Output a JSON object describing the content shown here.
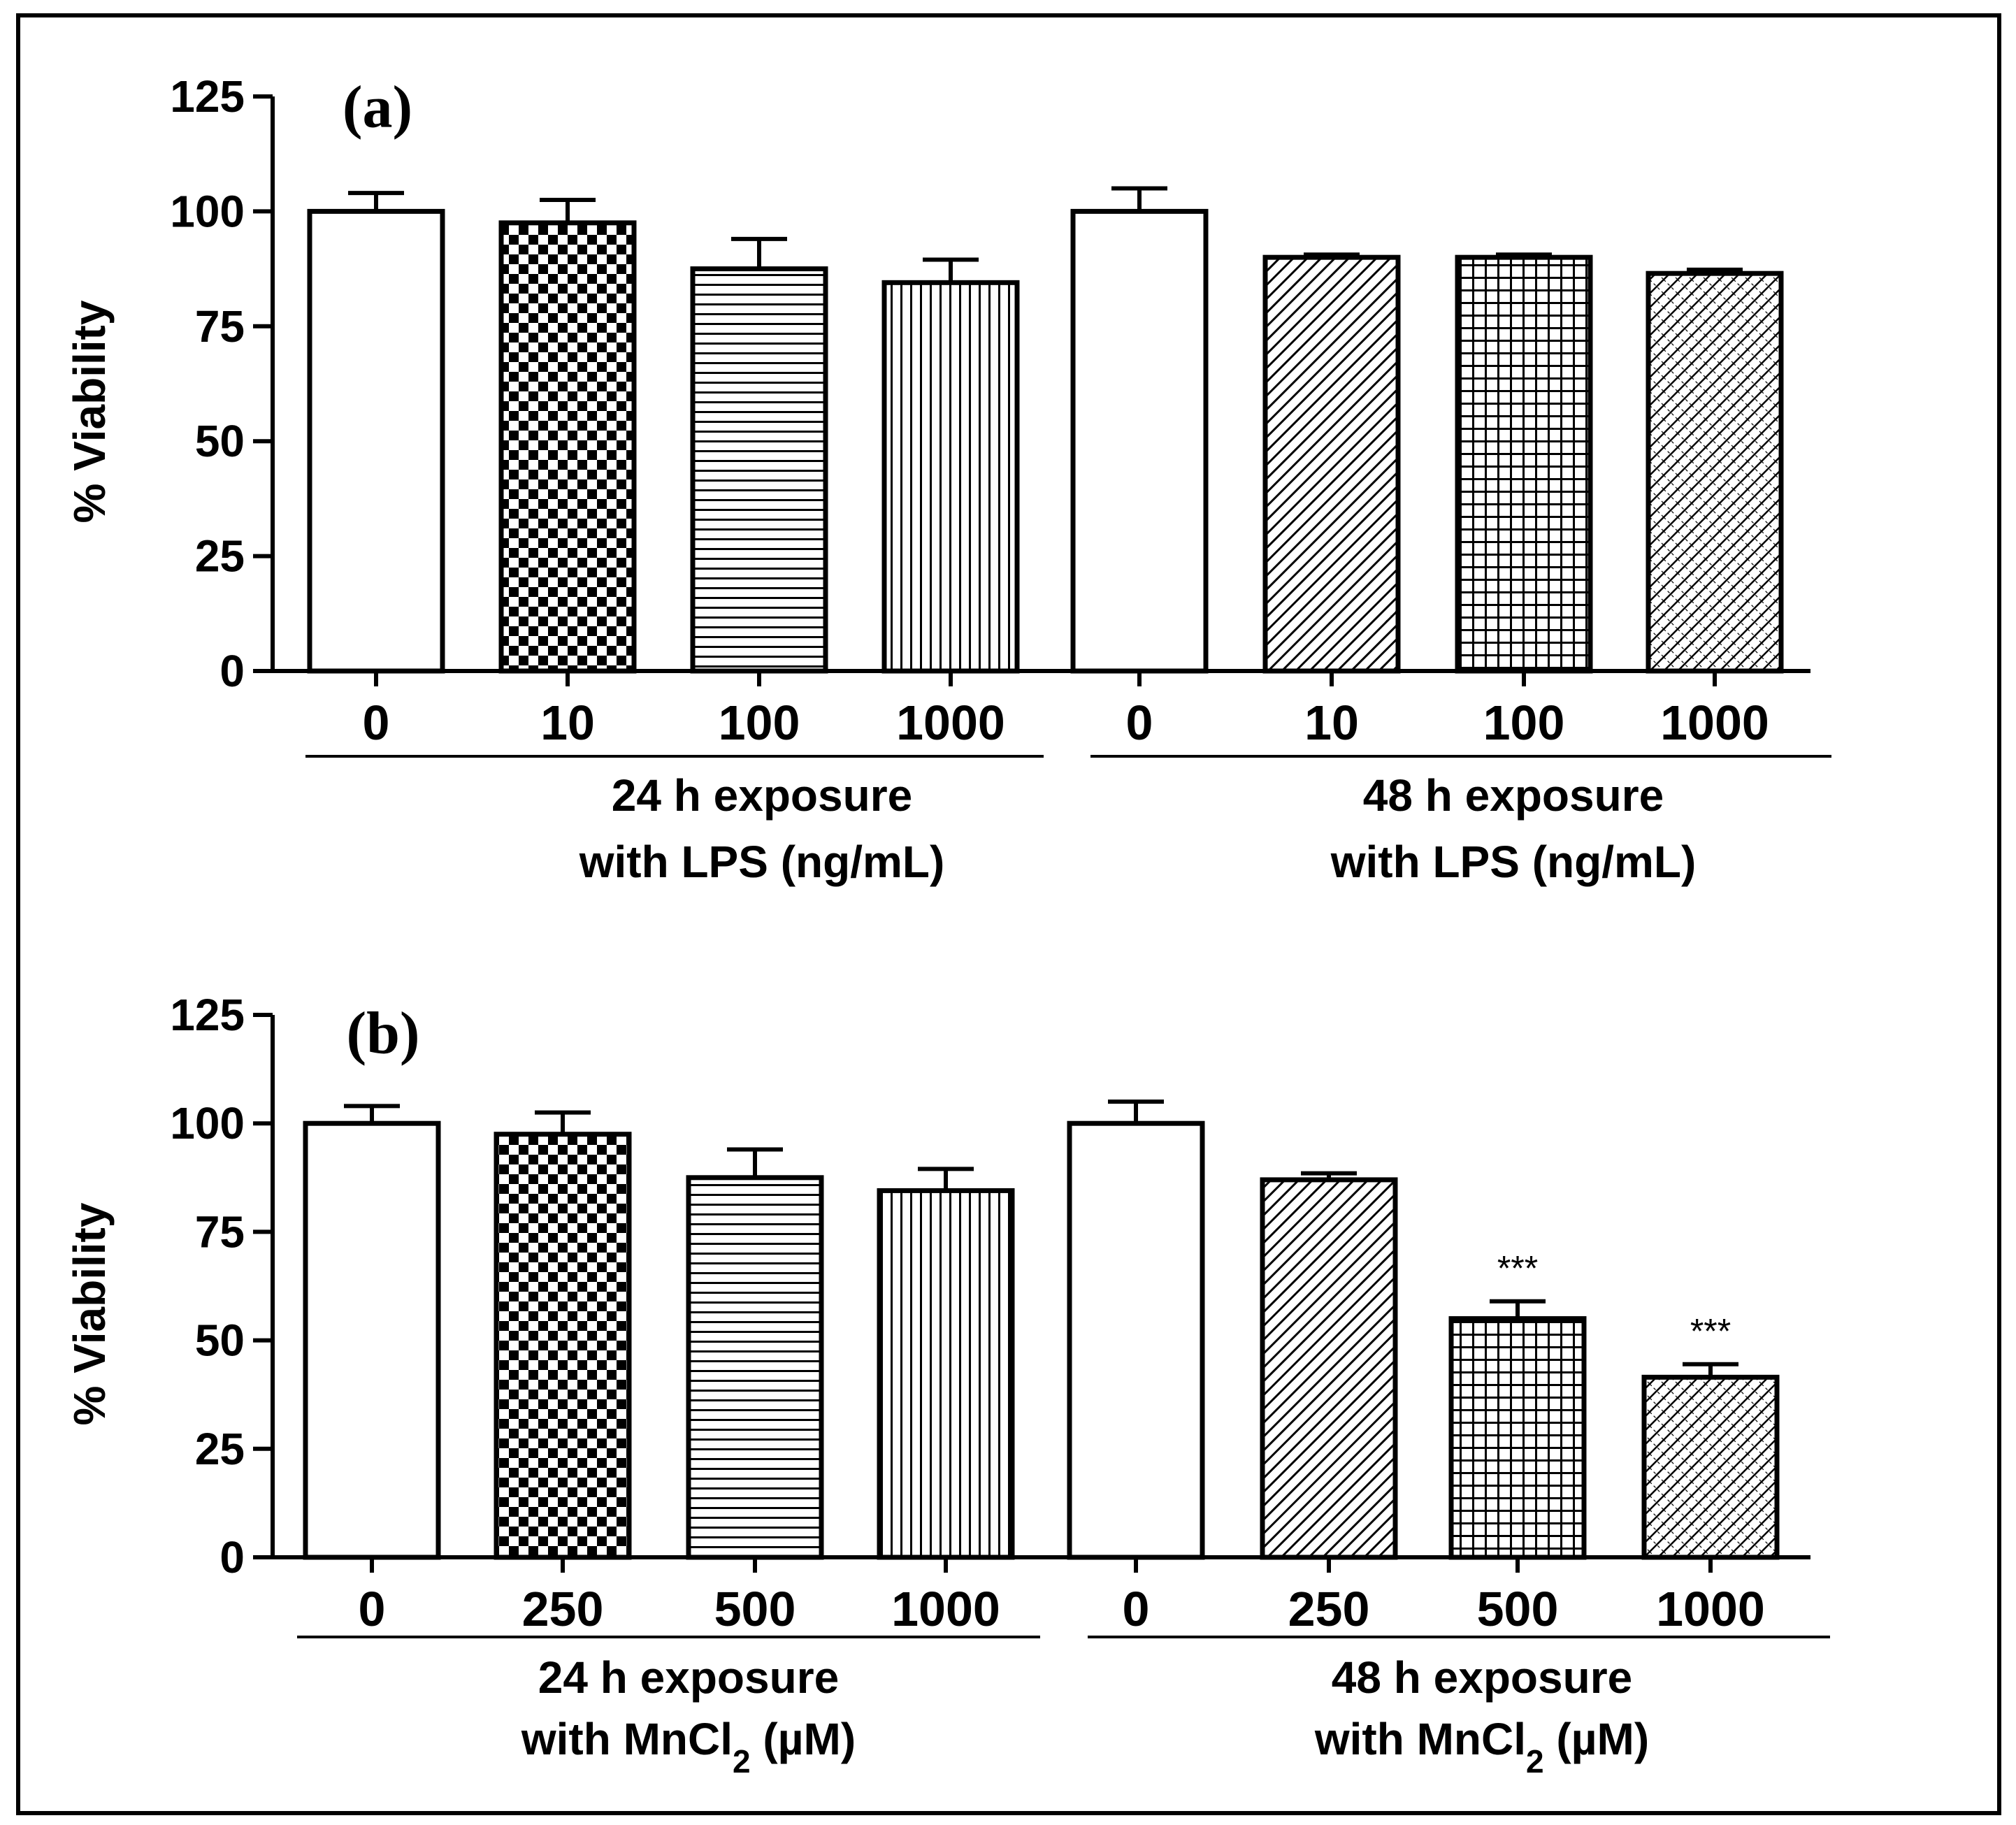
{
  "chart_data": [
    {
      "type": "bar",
      "panel_label": "(a)",
      "ylabel": "% Viability",
      "ylim": [
        0,
        125
      ],
      "yticks": [
        "0",
        "25",
        "50",
        "75",
        "100",
        "125"
      ],
      "categories": [
        "0",
        "10",
        "100",
        "1000",
        "0",
        "10",
        "100",
        "1000"
      ],
      "values": [
        100,
        97.5,
        87.5,
        84.5,
        100,
        90,
        90,
        86.5
      ],
      "errors": [
        4,
        5,
        6.5,
        5,
        5,
        0.6,
        0.6,
        0.8
      ],
      "annotations": [
        "",
        "",
        "",
        "",
        "",
        "",
        "",
        ""
      ],
      "groups": [
        {
          "line1": "24 h exposure",
          "line2": "with  LPS (ng/mL)",
          "line2_sub": "",
          "line2_tail": ""
        },
        {
          "line1": "48 h exposure",
          "line2": "with  LPS (ng/mL)",
          "line2_sub": "",
          "line2_tail": ""
        }
      ]
    },
    {
      "type": "bar",
      "panel_label": "(b)",
      "ylabel": "% Viability",
      "ylim": [
        0,
        125
      ],
      "yticks": [
        "0",
        "25",
        "50",
        "75",
        "100",
        "125"
      ],
      "categories": [
        "0",
        "250",
        "500",
        "1000",
        "0",
        "250",
        "500",
        "1000"
      ],
      "values": [
        100,
        97.5,
        87.5,
        84.5,
        100,
        87,
        55,
        41.5
      ],
      "errors": [
        4,
        5,
        6.5,
        5,
        5,
        1.5,
        4,
        3
      ],
      "annotations": [
        "",
        "",
        "",
        "",
        "",
        "",
        "***",
        "***"
      ],
      "groups": [
        {
          "line1": "24 h exposure",
          "line2": "with MnCl",
          "line2_sub": "2",
          "line2_tail": " (µM)"
        },
        {
          "line1": "48 h exposure",
          "line2": "with MnCl",
          "line2_sub": "2",
          "line2_tail": " (µM)"
        }
      ]
    }
  ]
}
